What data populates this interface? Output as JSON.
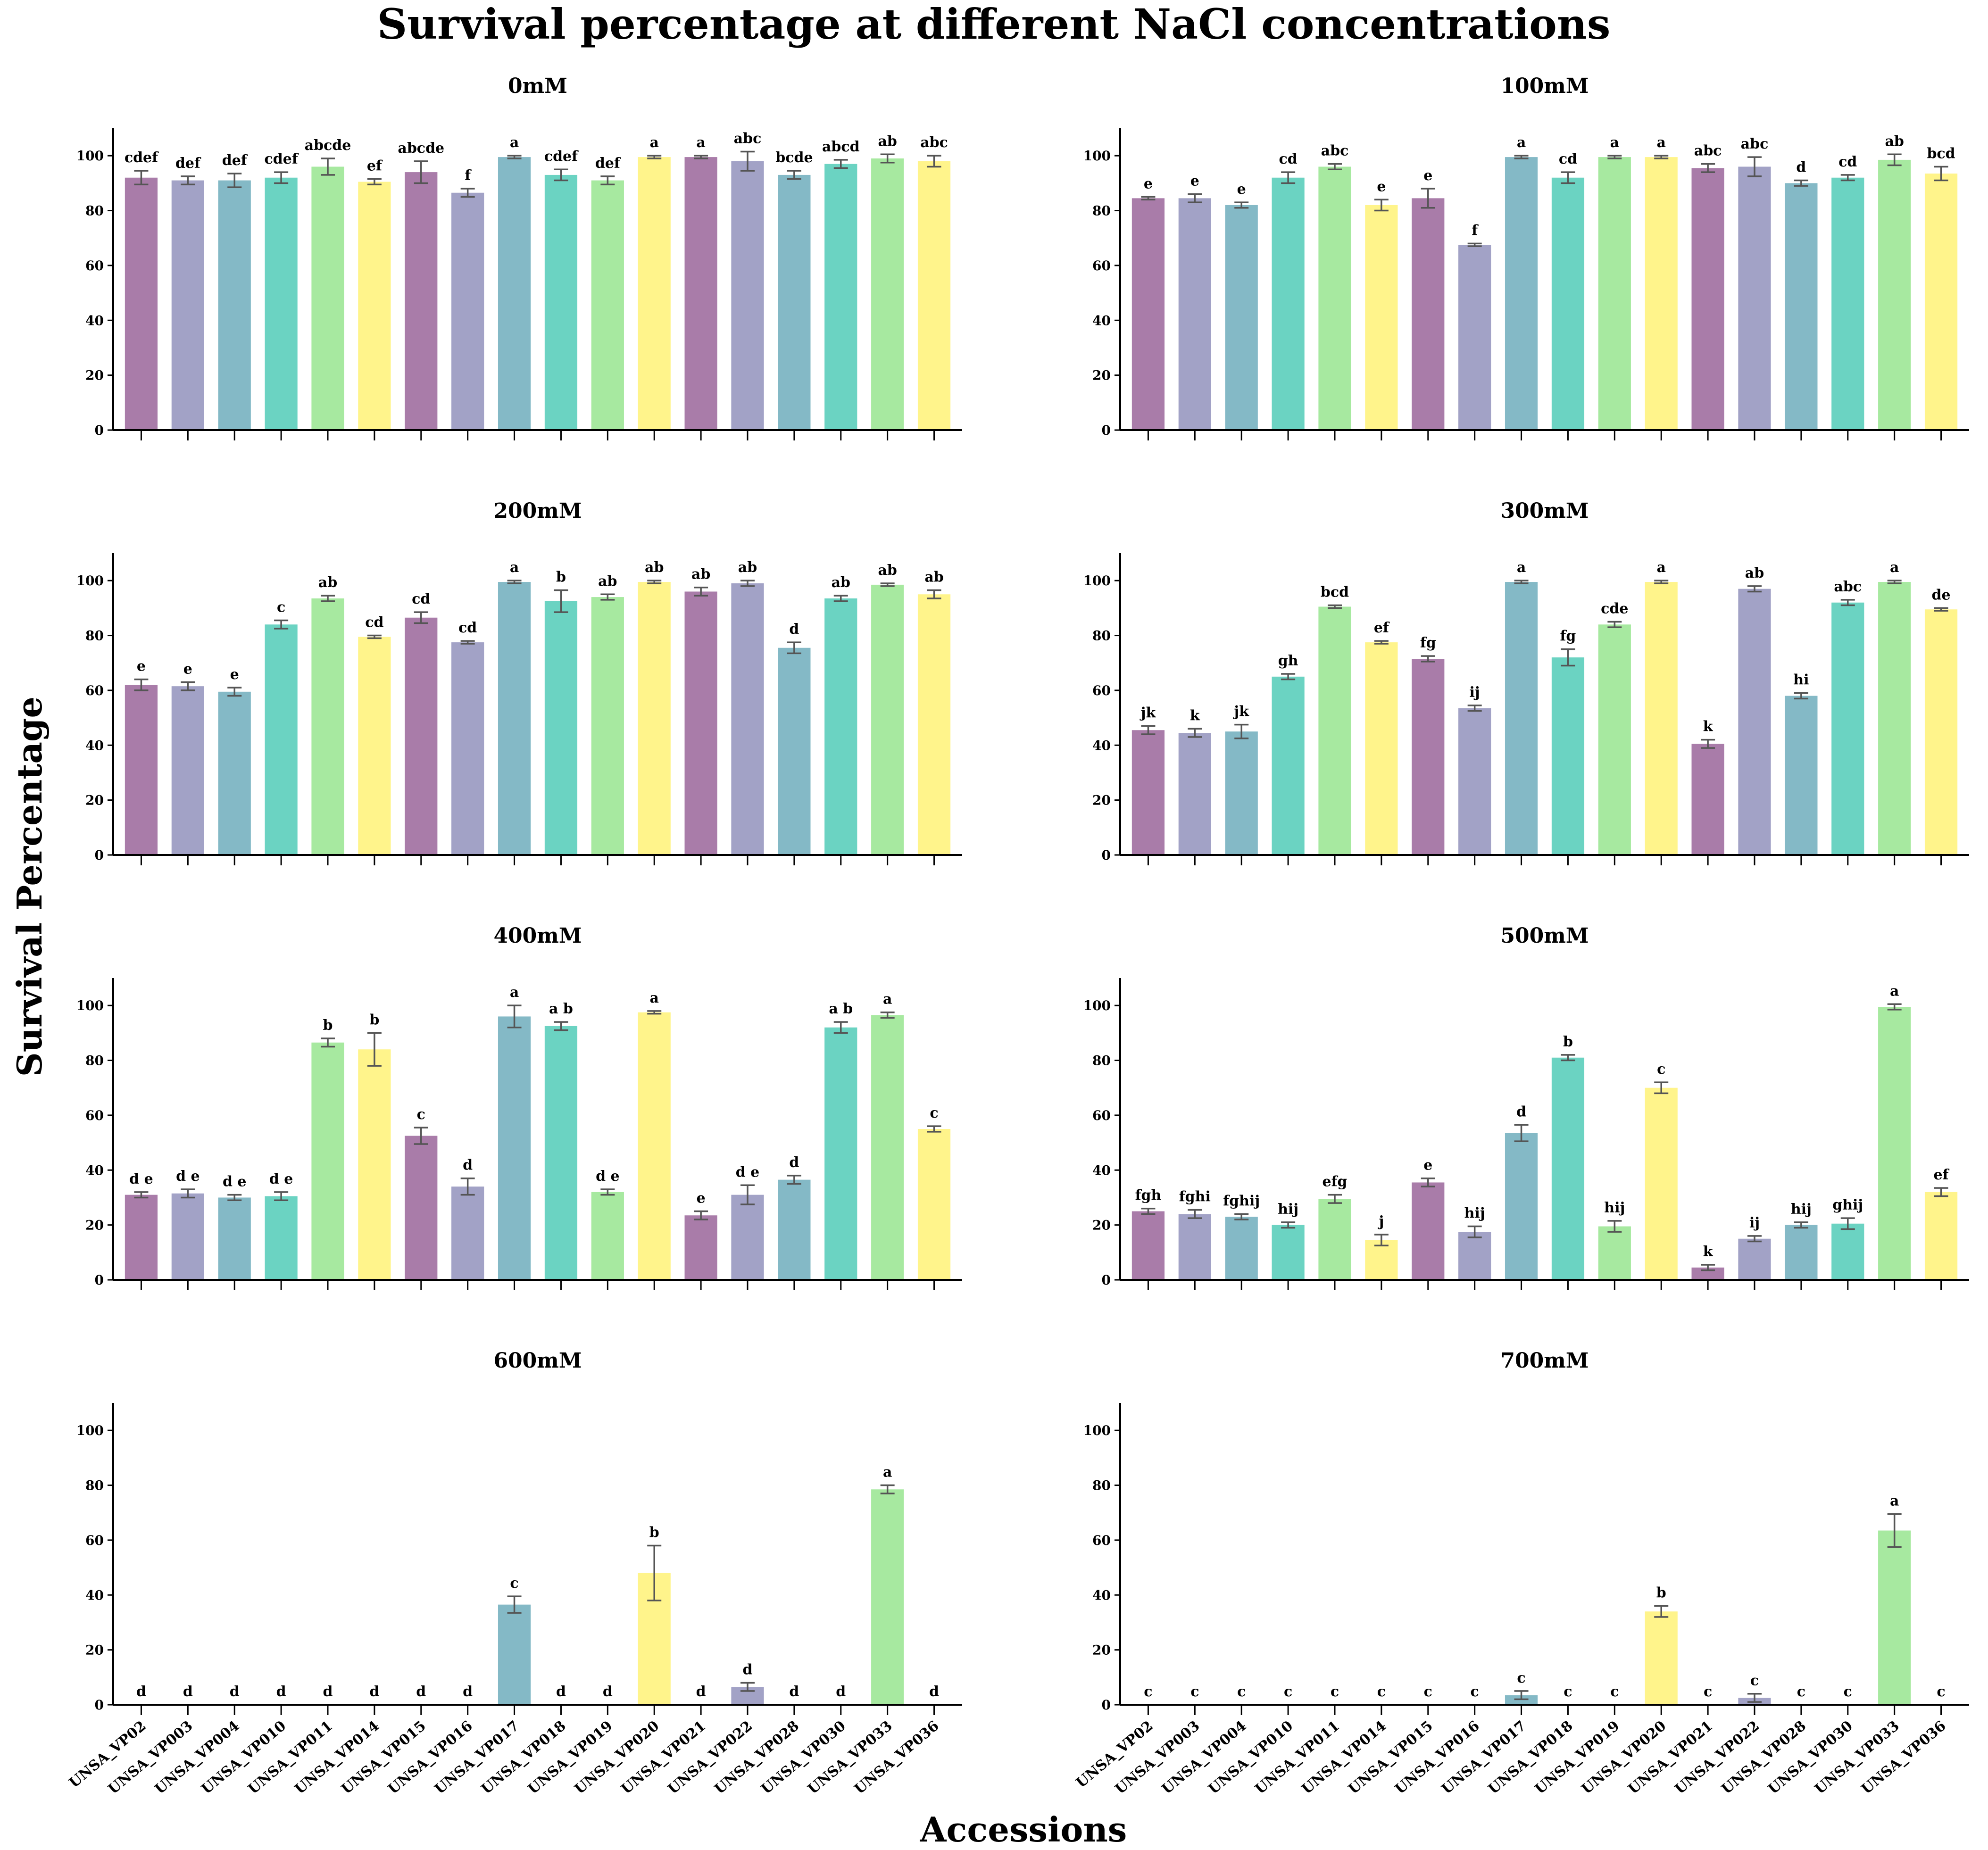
{
  "title": "Survival percentage at different NaCl concentrations",
  "xlabel": "Accessions",
  "ylabel": "Survival Percentage",
  "colors": [
    "#a97ca9",
    "#a2a2c6",
    "#84b9c6",
    "#6bd3c2",
    "#a7e9a0",
    "#fff48b"
  ],
  "chart_data": {
    "type": "bar",
    "categories": [
      "UNSA_VP02",
      "UNSA_VP003",
      "UNSA_VP004",
      "UNSA_VP010",
      "UNSA_VP011",
      "UNSA_VP014",
      "UNSA_VP015",
      "UNSA_VP016",
      "UNSA_VP017",
      "UNSA_VP018",
      "UNSA_VP019",
      "UNSA_VP020",
      "UNSA_VP021",
      "UNSA_VP022",
      "UNSA_VP028",
      "UNSA_VP030",
      "UNSA_VP033",
      "UNSA_VP036"
    ],
    "ylim": [
      0,
      110
    ],
    "yticks": [
      0,
      20,
      40,
      60,
      80,
      100
    ],
    "panels": [
      {
        "title": "0mM",
        "values": [
          92,
          91,
          91,
          92,
          96,
          90.5,
          94,
          86.5,
          99.5,
          93,
          91,
          99.5,
          99.5,
          98,
          93,
          97,
          99,
          98
        ],
        "errors": [
          2.5,
          1.5,
          2.5,
          2,
          3,
          1,
          4,
          1.5,
          0.5,
          2,
          1.5,
          0.5,
          0.5,
          3.5,
          1.5,
          1.5,
          1.5,
          2
        ],
        "letters": [
          "cdef",
          "def",
          "def",
          "cdef",
          "abcde",
          "ef",
          "abcde",
          "f",
          "a",
          "cdef",
          "def",
          "a",
          "a",
          "abc",
          "bcde",
          "abcd",
          "ab",
          "abc"
        ]
      },
      {
        "title": "100mM",
        "values": [
          84.5,
          84.5,
          82,
          92,
          96,
          82,
          84.5,
          67.5,
          99.5,
          92,
          99.5,
          99.5,
          95.5,
          96,
          90,
          92,
          98.5,
          93.5
        ],
        "errors": [
          0.5,
          1.5,
          1,
          2,
          1,
          2,
          3.5,
          0.5,
          0.5,
          2,
          0.5,
          0.5,
          1.5,
          3.5,
          1,
          1,
          2,
          2.5
        ],
        "letters": [
          "e",
          "e",
          "e",
          "cd",
          "abc",
          "e",
          "e",
          "f",
          "a",
          "cd",
          "a",
          "a",
          "abc",
          "abc",
          "d",
          "cd",
          "ab",
          "bcd"
        ]
      },
      {
        "title": "200mM",
        "values": [
          62,
          61.5,
          59.5,
          84,
          93.5,
          79.5,
          86.5,
          77.5,
          99.5,
          92.5,
          94,
          99.5,
          96,
          99,
          75.5,
          93.5,
          98.5,
          95
        ],
        "errors": [
          2,
          1.5,
          1.5,
          1.5,
          1,
          0.5,
          2,
          0.5,
          0.5,
          4,
          1,
          0.5,
          1.5,
          1,
          2,
          1,
          0.5,
          1.5
        ],
        "letters": [
          "e",
          "e",
          "e",
          "c",
          "ab",
          "cd",
          "cd",
          "cd",
          "a",
          "b",
          "ab",
          "ab",
          "ab",
          "ab",
          "d",
          "ab",
          "ab",
          "ab"
        ]
      },
      {
        "title": "300mM",
        "values": [
          45.5,
          44.5,
          45,
          65,
          90.5,
          77.5,
          71.5,
          53.5,
          99.5,
          72,
          84,
          99.5,
          40.5,
          97,
          58,
          92,
          99.5,
          89.5
        ],
        "errors": [
          1.5,
          1.5,
          2.5,
          1,
          0.5,
          0.5,
          1,
          1,
          0.5,
          3,
          1,
          0.5,
          1.5,
          1,
          1,
          1,
          0.5,
          0.5
        ],
        "letters": [
          "jk",
          "k",
          "jk",
          "gh",
          "bcd",
          "ef",
          "fg",
          "ij",
          "a",
          "fg",
          "cde",
          "a",
          "k",
          "ab",
          "hi",
          "abc",
          "a",
          "de"
        ]
      },
      {
        "title": "400mM",
        "values": [
          31,
          31.5,
          30,
          30.5,
          86.5,
          84,
          52.5,
          34,
          96,
          92.5,
          32,
          97.5,
          23.5,
          31,
          36.5,
          92,
          96.5,
          55
        ],
        "errors": [
          1,
          1.5,
          1,
          1.5,
          1.5,
          6,
          3,
          3,
          4,
          1.5,
          1,
          0.5,
          1.5,
          3.5,
          1.5,
          2,
          1,
          1
        ],
        "letters": [
          "d e",
          "d e",
          "d e",
          "d e",
          "b",
          "b",
          "c",
          "d",
          "a",
          "a b",
          "d e",
          "a",
          "e",
          "d e",
          "d",
          "a b",
          "a",
          "c"
        ]
      },
      {
        "title": "500mM",
        "values": [
          25,
          24,
          23,
          20,
          29.5,
          14.5,
          35.5,
          17.5,
          53.5,
          81,
          19.5,
          70,
          4.5,
          15,
          20,
          20.5,
          99.5,
          32
        ],
        "errors": [
          1,
          1.5,
          1,
          1,
          1.5,
          2,
          1.5,
          2,
          3,
          1,
          2,
          2,
          1,
          1,
          1,
          2,
          1,
          1.5
        ],
        "letters": [
          "fgh",
          "fghi",
          "fghij",
          "hij",
          "efg",
          "j",
          "e",
          "hij",
          "d",
          "b",
          "hij",
          "c",
          "k",
          "ij",
          "hij",
          "ghij",
          "a",
          "ef"
        ]
      },
      {
        "title": "600mM",
        "values": [
          0,
          0,
          0,
          0,
          0,
          0,
          0,
          0,
          36.5,
          0,
          0,
          48,
          0,
          6.5,
          0,
          0,
          78.5,
          0
        ],
        "errors": [
          0,
          0,
          0,
          0,
          0,
          0,
          0,
          0,
          3,
          0,
          0,
          10,
          0,
          1.5,
          0,
          0,
          1.5,
          0
        ],
        "letters": [
          "d",
          "d",
          "d",
          "d",
          "d",
          "d",
          "d",
          "d",
          "c",
          "d",
          "d",
          "b",
          "d",
          "d",
          "d",
          "d",
          "a",
          "d"
        ]
      },
      {
        "title": "700mM",
        "values": [
          0,
          0,
          0,
          0,
          0,
          0,
          0,
          0,
          3.5,
          0,
          0,
          34,
          0,
          2.5,
          0,
          0,
          63.5,
          0
        ],
        "errors": [
          0,
          0,
          0,
          0,
          0,
          0,
          0,
          0,
          1.5,
          0,
          0,
          2,
          0,
          1.5,
          0,
          0,
          6,
          0
        ],
        "letters": [
          "c",
          "c",
          "c",
          "c",
          "c",
          "c",
          "c",
          "c",
          "c",
          "c",
          "c",
          "b",
          "c",
          "c",
          "c",
          "c",
          "a",
          "c"
        ]
      }
    ]
  }
}
